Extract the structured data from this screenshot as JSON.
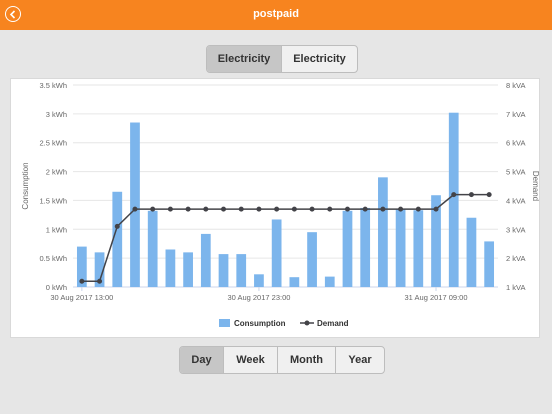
{
  "header": {
    "title": "postpaid",
    "back_icon": "back-arrow-icon",
    "color": "#f7841f"
  },
  "top_toggle": {
    "options": [
      "Electricity",
      "Electricity"
    ],
    "active_index": 0
  },
  "period_toggle": {
    "options": [
      "Day",
      "Week",
      "Month",
      "Year"
    ],
    "active_index": 0
  },
  "chart_data": {
    "type": "bar",
    "y_left": {
      "label": "Consumption",
      "unit": "kWh",
      "ylim": [
        0,
        3.5
      ],
      "ticks": [
        "0 kWh",
        "0.5 kWh",
        "1 kWh",
        "1.5 kWh",
        "2 kWh",
        "2.5 kWh",
        "3 kWh",
        "3.5 kWh"
      ]
    },
    "y_right": {
      "label": "Demand",
      "unit": "kVA",
      "ylim": [
        1,
        8
      ],
      "ticks": [
        "1 kVA",
        "2 kVA",
        "3 kVA",
        "4 kVA",
        "5 kVA",
        "6 kVA",
        "7 kVA",
        "8 kVA"
      ]
    },
    "x_tick_labels": [
      {
        "index": 0,
        "text": "30 Aug 2017 13:00"
      },
      {
        "index": 10,
        "text": "30 Aug 2017 23:00"
      },
      {
        "index": 20,
        "text": "31 Aug 2017 09:00"
      }
    ],
    "series": [
      {
        "name": "Consumption",
        "type": "bar",
        "color": "#7cb5ec",
        "values": [
          0.7,
          0.6,
          1.65,
          2.85,
          1.32,
          0.65,
          0.6,
          0.92,
          0.57,
          0.57,
          0.22,
          1.17,
          0.17,
          0.95,
          0.18,
          1.32,
          1.37,
          1.9,
          1.35,
          1.33,
          1.59,
          3.02,
          1.2,
          0.79
        ]
      },
      {
        "name": "Demand",
        "type": "line",
        "color": "#434348",
        "values": [
          1.2,
          1.2,
          3.1,
          3.7,
          3.7,
          3.7,
          3.7,
          3.7,
          3.7,
          3.7,
          3.7,
          3.7,
          3.7,
          3.7,
          3.7,
          3.7,
          3.7,
          3.7,
          3.7,
          3.7,
          3.7,
          4.2,
          4.2,
          4.2
        ]
      }
    ],
    "grid": true,
    "legend": "bottom-center"
  }
}
